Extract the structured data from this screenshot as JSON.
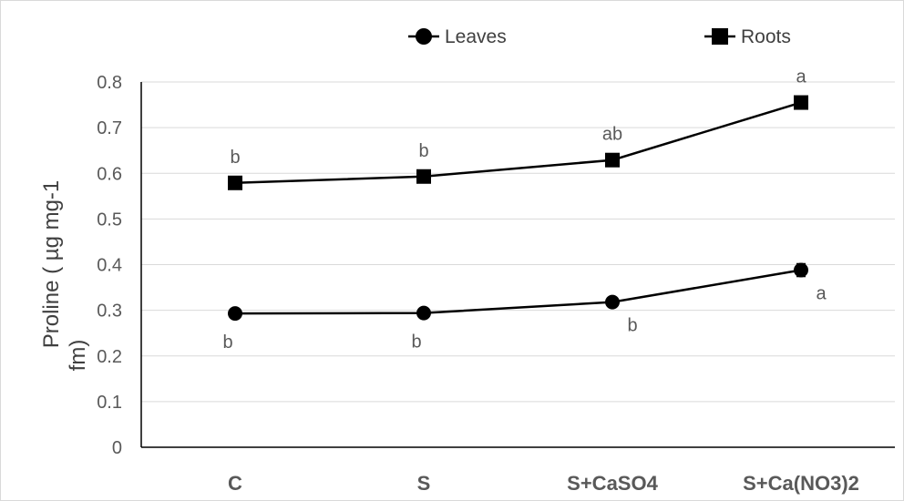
{
  "chart_data": {
    "type": "line",
    "categories": [
      "C",
      "S",
      "S+CaSO4",
      "S+Ca(NO3)2"
    ],
    "ylabel_lines": [
      "Proline ( µg mg-1",
      "fm)"
    ],
    "ylim": [
      0,
      0.8
    ],
    "yticks": [
      "0",
      "0.1",
      "0.2",
      "0.3",
      "0.4",
      "0.5",
      "0.6",
      "0.7",
      "0.8"
    ],
    "grid": true,
    "legend_position": "top",
    "series": [
      {
        "name": "Leaves",
        "marker": "circle",
        "values": [
          0.293,
          0.294,
          0.318,
          0.388
        ],
        "errors": [
          0.005,
          0.005,
          0.007,
          0.014
        ],
        "labels": [
          "b",
          "b",
          "b",
          "a"
        ],
        "label_side": [
          "below",
          "below",
          "below-right",
          "below-right"
        ]
      },
      {
        "name": "Roots",
        "marker": "square",
        "values": [
          0.579,
          0.593,
          0.629,
          0.755
        ],
        "errors": [
          0.012,
          0.006,
          0.006,
          0.008
        ],
        "labels": [
          "b",
          "b",
          "ab",
          "a"
        ],
        "label_side": [
          "above",
          "above",
          "above",
          "above"
        ]
      }
    ]
  }
}
